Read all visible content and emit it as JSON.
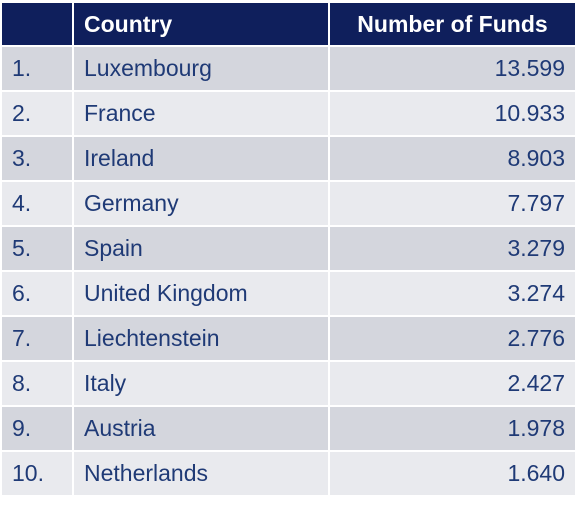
{
  "table": {
    "headers": {
      "rank": "",
      "country": "Country",
      "funds": "Number of Funds"
    },
    "rows": [
      {
        "rank": "1.",
        "country": "Luxembourg",
        "funds": "13.599"
      },
      {
        "rank": "2.",
        "country": "France",
        "funds": "10.933"
      },
      {
        "rank": "3.",
        "country": "Ireland",
        "funds": "8.903"
      },
      {
        "rank": "4.",
        "country": "Germany",
        "funds": "7.797"
      },
      {
        "rank": "5.",
        "country": "Spain",
        "funds": "3.279"
      },
      {
        "rank": "6.",
        "country": "United Kingdom",
        "funds": "3.274"
      },
      {
        "rank": "7.",
        "country": "Liechtenstein",
        "funds": "2.776"
      },
      {
        "rank": "8.",
        "country": "Italy",
        "funds": "2.427"
      },
      {
        "rank": "9.",
        "country": "Austria",
        "funds": "1.978"
      },
      {
        "rank": "10.",
        "country": "Netherlands",
        "funds": "1.640"
      }
    ]
  },
  "colors": {
    "header_bg": "#0f1f5c",
    "header_text": "#ffffff",
    "row_text": "#1f3a76",
    "row_odd": "#d4d6dd",
    "row_even": "#e9eaee"
  }
}
